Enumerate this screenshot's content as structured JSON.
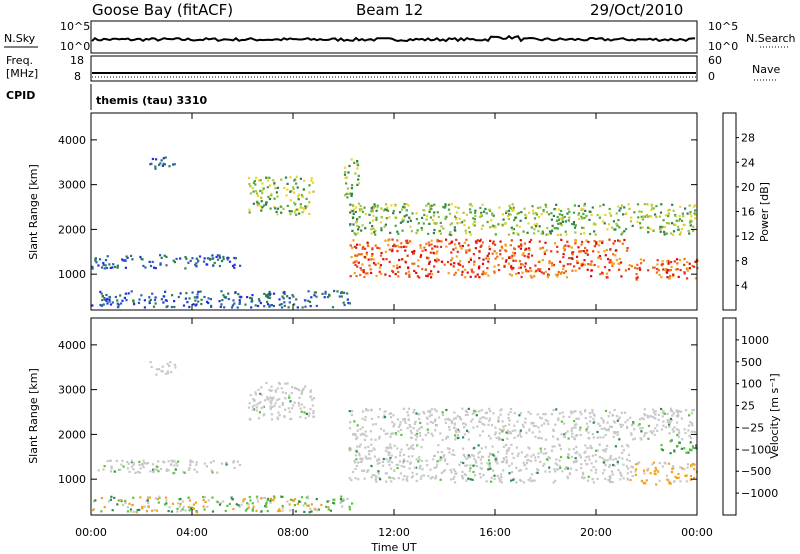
{
  "header": {
    "station": "Goose Bay (fitACF)",
    "beam": "Beam 12",
    "date": "29/Oct/2010"
  },
  "aux_panels": {
    "nsky": {
      "left_label": "N.Sky",
      "left_ticks": [
        "10^5",
        "10^0"
      ],
      "right_ticks": [
        "10^5",
        "10^0"
      ],
      "right_label": "N.Search"
    },
    "freq": {
      "left_label_1": "Freq.",
      "left_label_2": "[MHz]",
      "left_ticks": [
        "18",
        "8"
      ],
      "right_ticks": [
        "60",
        "0"
      ],
      "right_label": "Nave"
    },
    "cpid": {
      "label": "CPID",
      "value": "themis (tau) 3310"
    }
  },
  "x_axis": {
    "ticks": [
      "00:00",
      "04:00",
      "08:00",
      "12:00",
      "16:00",
      "20:00",
      "00:00"
    ],
    "label": "Time UT"
  },
  "colors": {
    "frame": "#000000",
    "background": "#ffffff"
  },
  "chart_data": [
    {
      "type": "heatmap",
      "panel": "power",
      "ylabel": "Slant Range [km]",
      "yticks": [
        "1000",
        "2000",
        "3000",
        "4000"
      ],
      "ylim": [
        200,
        4600
      ],
      "xlim_hours": [
        0,
        24
      ],
      "colorbar": {
        "label": "Power [dB]",
        "ticks": [
          "4",
          "8",
          "12",
          "16",
          "20",
          "24",
          "28"
        ],
        "colors": [
          "#1f2ee0",
          "#2a5fb0",
          "#2e7d4f",
          "#49a83d",
          "#a5c43a",
          "#f0d12a",
          "#f5a21d",
          "#ef6a18",
          "#e63319",
          "#dc0a0a"
        ]
      },
      "regions": [
        {
          "t": [
            0.0,
            5.9
          ],
          "r": [
            1150,
            1450
          ],
          "level": "low"
        },
        {
          "t": [
            0.0,
            10.3
          ],
          "r": [
            280,
            650
          ],
          "level": "low"
        },
        {
          "t": [
            2.3,
            3.3
          ],
          "r": [
            3350,
            3650
          ],
          "level": "low"
        },
        {
          "t": [
            6.2,
            8.8
          ],
          "r": [
            2350,
            3200
          ],
          "level": "mid"
        },
        {
          "t": [
            10.2,
            21.3
          ],
          "r": [
            950,
            1800
          ],
          "level": "high"
        },
        {
          "t": [
            10.2,
            23.9
          ],
          "r": [
            1900,
            2600
          ],
          "level": "mid"
        },
        {
          "t": [
            21.3,
            24.0
          ],
          "r": [
            900,
            1400
          ],
          "level": "high"
        },
        {
          "t": [
            10.0,
            10.6
          ],
          "r": [
            2700,
            3600
          ],
          "level": "mid"
        }
      ]
    },
    {
      "type": "heatmap",
      "panel": "velocity",
      "ylabel": "Slant Range [km]",
      "yticks": [
        "1000",
        "2000",
        "3000",
        "4000"
      ],
      "ylim": [
        200,
        4600
      ],
      "xlim_hours": [
        0,
        24
      ],
      "colorbar": {
        "label": "Velocity [m s⁻¹]",
        "ticks": [
          "1000",
          "500",
          "100",
          "25",
          "−25",
          "−100",
          "−500",
          "−1000"
        ],
        "colors": [
          "#1b2fb5",
          "#2a6bb8",
          "#2f8a4a",
          "#5cc23c",
          "#c8c8c8",
          "#c8c8c8",
          "#f3a21d",
          "#ef6a18",
          "#e6321a",
          "#dc0a0a"
        ]
      },
      "regions": [
        {
          "t": [
            0.0,
            5.9
          ],
          "r": [
            1150,
            1450
          ],
          "level": "grey"
        },
        {
          "t": [
            0.0,
            10.3
          ],
          "r": [
            280,
            650
          ],
          "level": "mixed"
        },
        {
          "t": [
            2.3,
            3.3
          ],
          "r": [
            3350,
            3650
          ],
          "level": "grey"
        },
        {
          "t": [
            6.2,
            8.8
          ],
          "r": [
            2350,
            3200
          ],
          "level": "grey"
        },
        {
          "t": [
            10.2,
            21.3
          ],
          "r": [
            950,
            1800
          ],
          "level": "grey"
        },
        {
          "t": [
            10.2,
            23.9
          ],
          "r": [
            1900,
            2600
          ],
          "level": "grey"
        },
        {
          "t": [
            21.3,
            24.0
          ],
          "r": [
            900,
            1400
          ],
          "level": "orange"
        },
        {
          "t": [
            22.5,
            24.0
          ],
          "r": [
            1600,
            1900
          ],
          "level": "green"
        }
      ]
    }
  ]
}
